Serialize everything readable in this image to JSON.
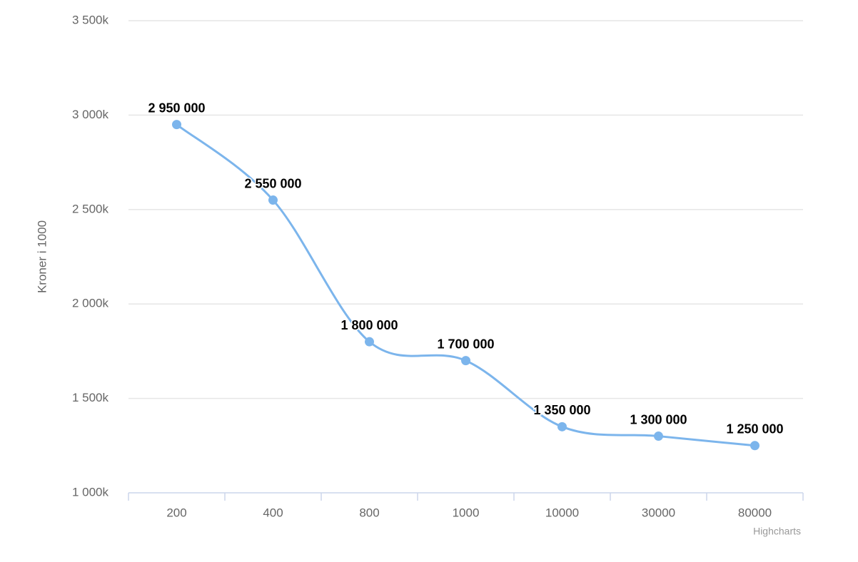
{
  "chart_data": {
    "type": "line",
    "y_label": "Kroner i 1000",
    "categories": [
      "200",
      "400",
      "800",
      "1000",
      "10000",
      "30000",
      "80000"
    ],
    "series": [
      {
        "color": "#7cb5ec",
        "values": [
          2950000,
          2550000,
          1800000,
          1700000,
          1350000,
          1300000,
          1250000
        ],
        "value_labels": [
          "2 950 000",
          "2 550 000",
          "1 800 000",
          "1 700 000",
          "1 350 000",
          "1 300 000",
          "1 250 000"
        ]
      }
    ],
    "ylim": [
      1000000,
      3500000
    ],
    "yticks": [
      {
        "value": 1000000,
        "label": "1 000k"
      },
      {
        "value": 1500000,
        "label": "1 500k"
      },
      {
        "value": 2000000,
        "label": "2 000k"
      },
      {
        "value": 2500000,
        "label": "2 500k"
      },
      {
        "value": 3000000,
        "label": "3 000k"
      },
      {
        "value": 3500000,
        "label": "3 500k"
      }
    ],
    "grid": true,
    "smooth": true,
    "credits": "Highcharts"
  }
}
